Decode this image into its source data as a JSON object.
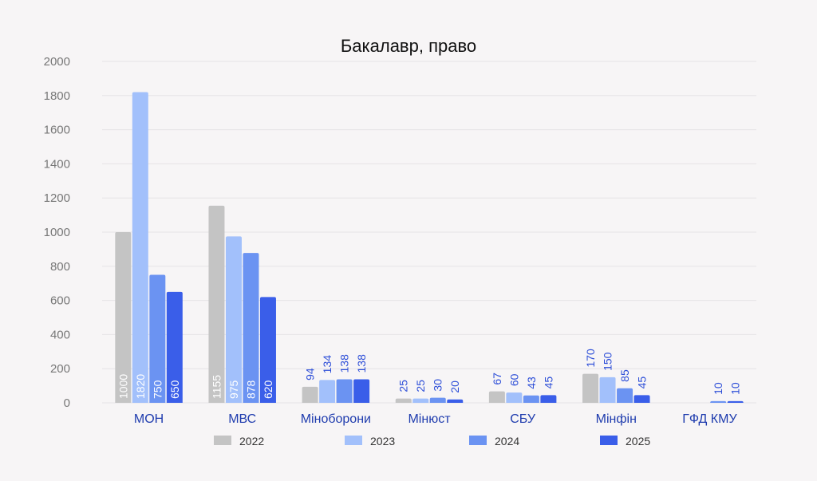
{
  "chart_data": {
    "type": "bar",
    "title": "Бакалавр, право",
    "categories": [
      "МОН",
      "МВС",
      "Міноборони",
      "Мінюст",
      "СБУ",
      "Мінфін",
      "ГФД КМУ"
    ],
    "series": [
      {
        "name": "2022",
        "color": "#c4c4c4",
        "values": [
          1000,
          1155,
          94,
          25,
          67,
          170,
          null
        ]
      },
      {
        "name": "2023",
        "color": "#a2c0fb",
        "values": [
          1820,
          975,
          134,
          25,
          60,
          150,
          null
        ]
      },
      {
        "name": "2024",
        "color": "#6b93f2",
        "values": [
          750,
          878,
          138,
          30,
          43,
          85,
          10
        ]
      },
      {
        "name": "2025",
        "color": "#3a5ee9",
        "values": [
          650,
          620,
          138,
          20,
          45,
          45,
          10
        ]
      }
    ],
    "ylim": [
      0,
      2000
    ],
    "yticks": [
      0,
      200,
      400,
      600,
      800,
      1000,
      1200,
      1400,
      1600,
      1800,
      2000
    ],
    "grid": true,
    "legend": "bottom"
  }
}
